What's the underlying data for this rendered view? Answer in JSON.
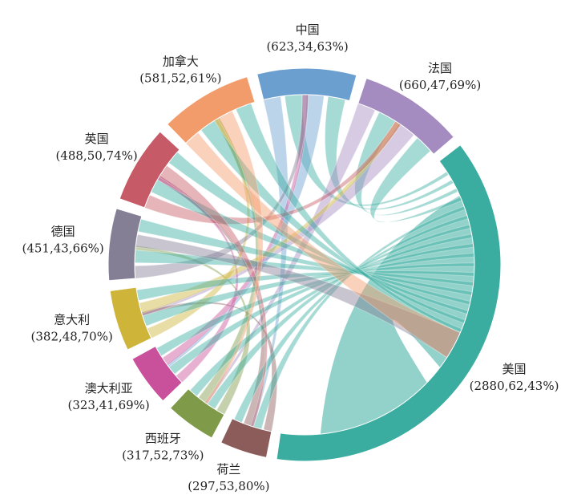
{
  "chart_data": {
    "type": "chord",
    "categories": [
      "中国",
      "法国",
      "美国",
      "荷兰",
      "西班牙",
      "澳大利亚",
      "意大利",
      "德国",
      "英国",
      "加拿大"
    ],
    "values": [
      623,
      660,
      2880,
      297,
      317,
      323,
      382,
      451,
      488,
      581
    ],
    "value_labels": [
      "(623,34,63%)",
      "(660,47,69%)",
      "(2880,62,43%)",
      "(297,53,80%)",
      "(317,52,73%)",
      "(323,41,69%)",
      "(382,48,70%)",
      "(451,43,66%)",
      "(488,50,74%)",
      "(581,52,61%)"
    ],
    "colors": [
      "#6a9fd0",
      "#a58cc0",
      "#3aada0",
      "#8b5c5a",
      "#7f9a48",
      "#c9509a",
      "#cfb43a",
      "#857f96",
      "#c65a66",
      "#f39c6b"
    ]
  }
}
